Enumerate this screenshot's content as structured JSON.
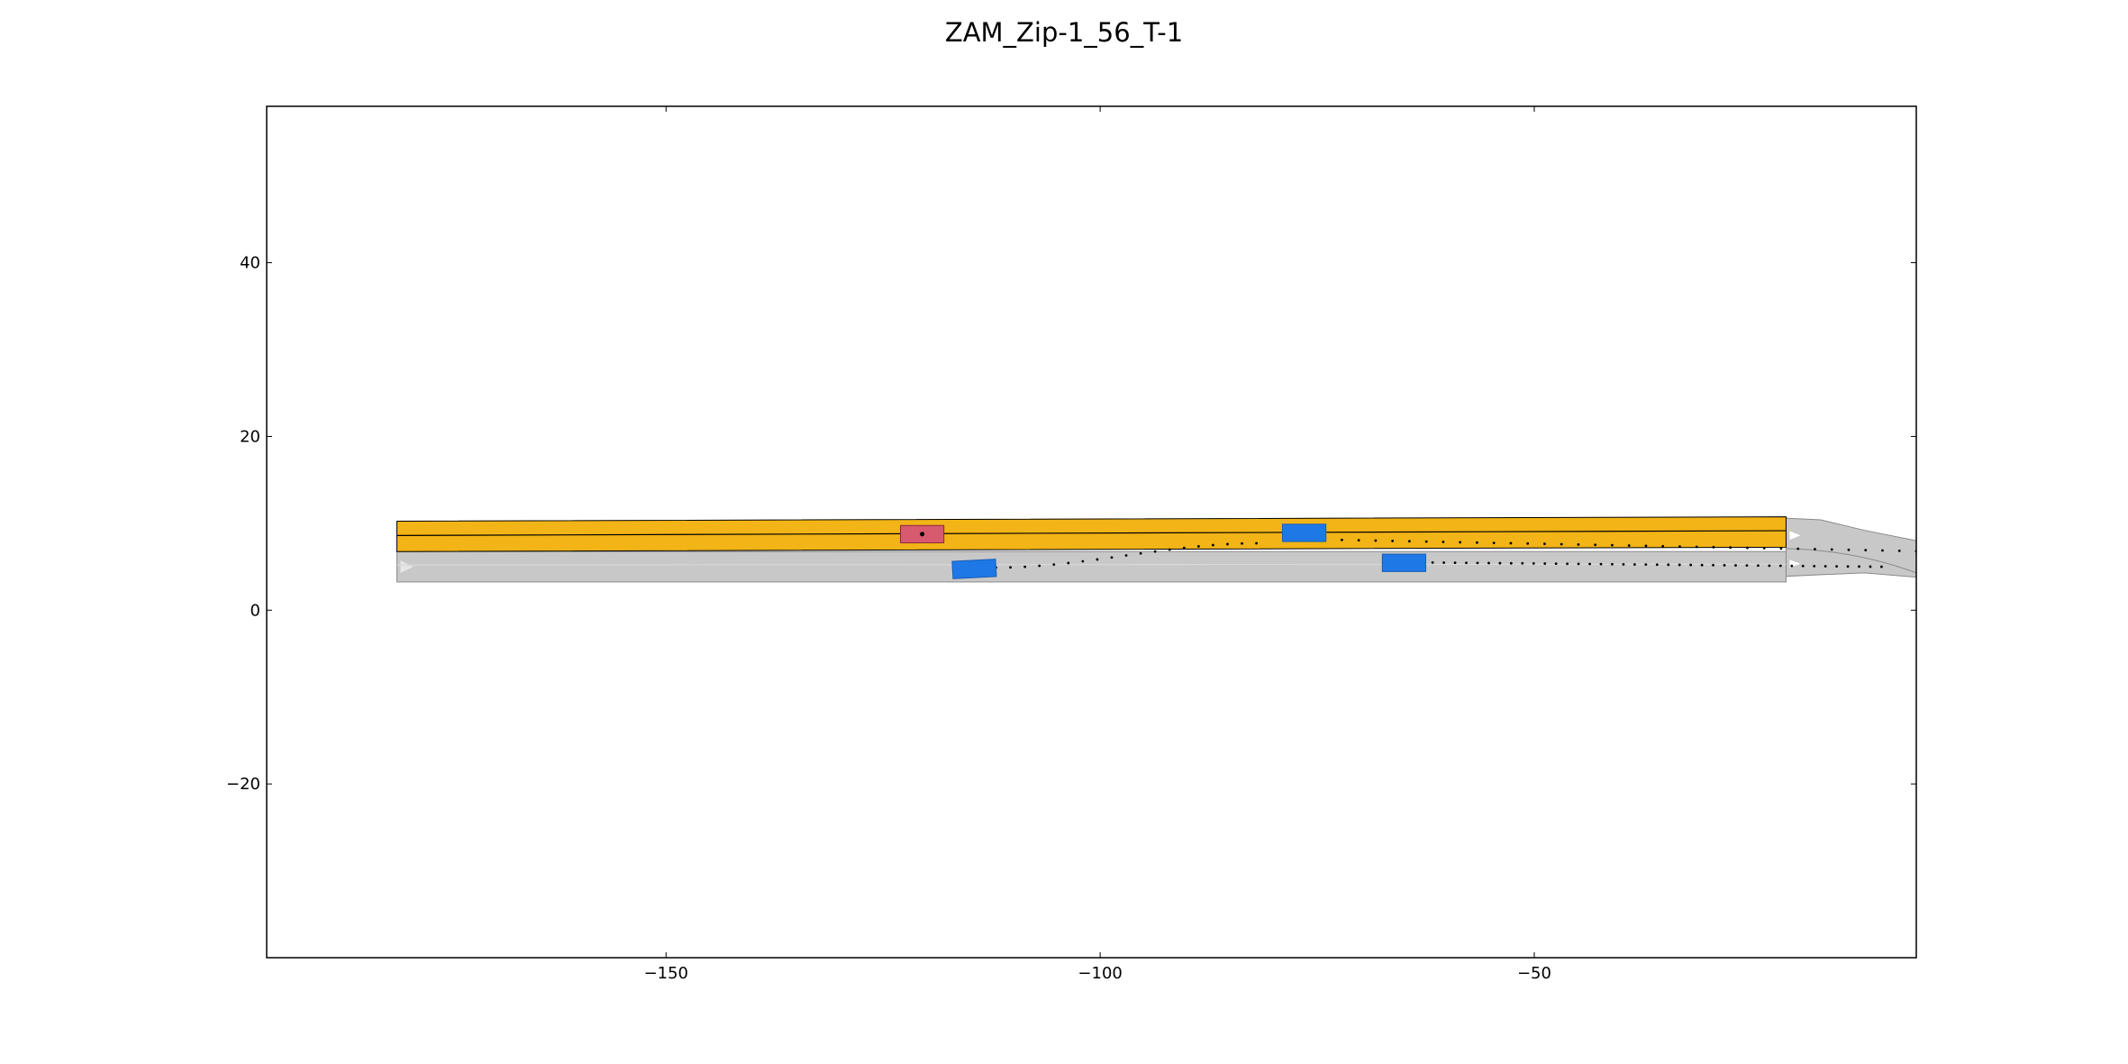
{
  "chart_data": {
    "type": "scenario",
    "title": "ZAM_Zip-1_56_T-1",
    "xlim": [
      -196,
      -6
    ],
    "ylim": [
      -40,
      58
    ],
    "x_ticks": [
      -150,
      -100,
      -50
    ],
    "x_tick_labels": [
      "−150",
      "−100",
      "−50"
    ],
    "y_ticks": [
      -20,
      0,
      20,
      40
    ],
    "y_tick_labels": [
      "−20",
      "0",
      "20",
      "40"
    ],
    "grid": false,
    "colors": {
      "lane_fill": "#c8c8c8",
      "lane_edge": "#8a8a8a",
      "goal_region": "#f2b416",
      "ego_vehicle": "#d75a6e",
      "obstacle_vehicle": "#1e78e6",
      "trajectory": "#000000",
      "lane_marker": "#e6e6e6"
    },
    "lanes": [
      {
        "name": "upper",
        "y_left_edge": 10.25,
        "y_right_edge": 6.75,
        "x_start": -181,
        "x_end": -21,
        "goal": true
      },
      {
        "name": "lower",
        "y_left_edge": 6.75,
        "y_right_edge": 3.25,
        "x_start": -181,
        "x_end": -21,
        "goal": false
      }
    ],
    "ego_vehicle": {
      "x": -120.5,
      "y": 8.75,
      "length": 5.0,
      "width": 2.0,
      "orientation_deg": 0
    },
    "obstacles": [
      {
        "name": "obstacle-1",
        "x": -114.5,
        "y": 4.75,
        "length": 5.0,
        "width": 2.0,
        "orientation_deg": 3
      },
      {
        "name": "obstacle-2",
        "x": -76.5,
        "y": 8.9,
        "length": 5.0,
        "width": 2.0,
        "orientation_deg": 0
      },
      {
        "name": "obstacle-3",
        "x": -65.0,
        "y": 5.45,
        "length": 5.0,
        "width": 2.0,
        "orientation_deg": 0
      }
    ],
    "trajectories": [
      {
        "from": [
          -112,
          4.9
        ],
        "to": [
          -82,
          7.7
        ],
        "count": 19
      },
      {
        "from": [
          -78,
          8.2
        ],
        "to": [
          -6,
          6.8
        ],
        "count": 38
      },
      {
        "from": [
          -63,
          5.5
        ],
        "to": [
          -10,
          5.0
        ],
        "count": 42
      }
    ]
  }
}
